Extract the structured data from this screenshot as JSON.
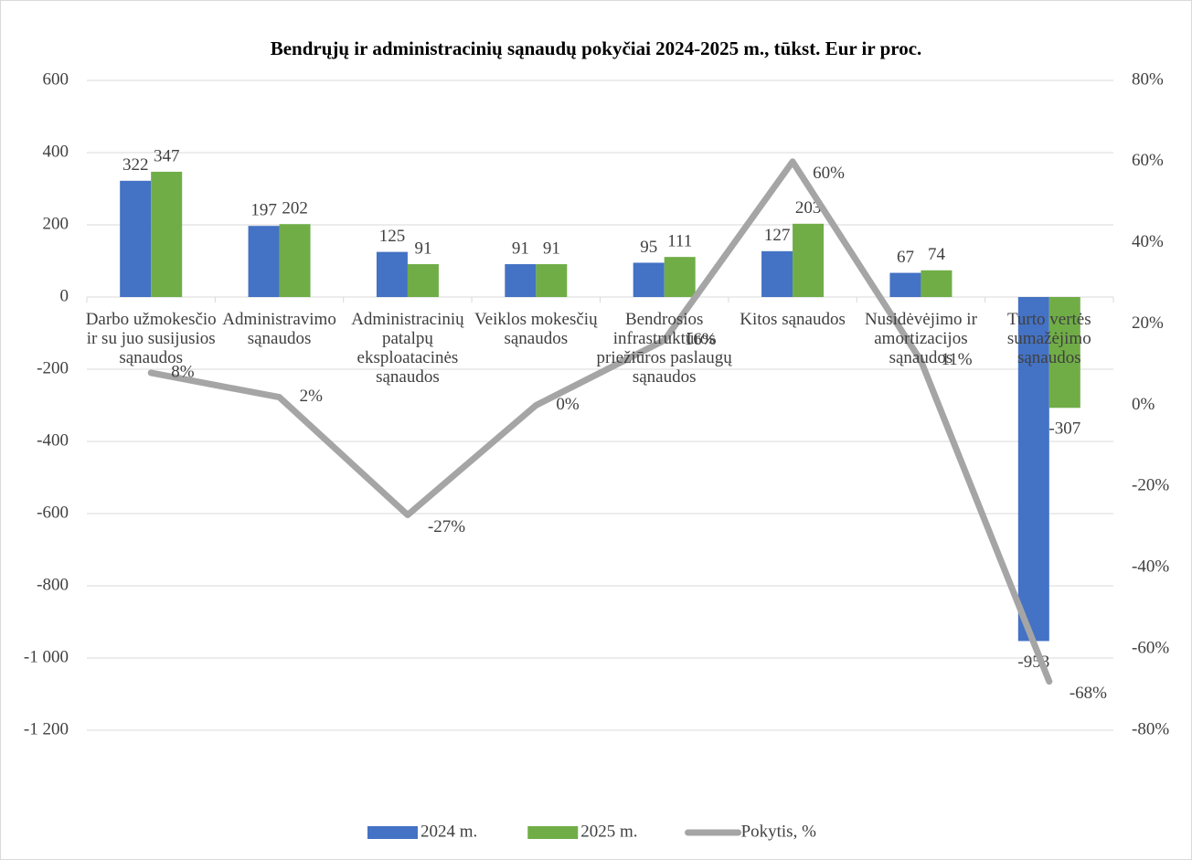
{
  "chart_data": {
    "type": "bar",
    "title": "Bendrųjų ir administracinių sąnaudų pokyčiai 2024-2025 m., tūkst. Eur ir proc.",
    "categories": [
      "Darbo užmokesčio ir su juo susijusios sąnaudos",
      "Administravimo sąnaudos",
      "Administracinių patalpų eksploatacinės sąnaudos",
      "Veiklos mokesčių sąnaudos",
      "Bendrosios infrastruktūros priežiūros paslaugų sąnaudos",
      "Kitos sąnaudos",
      "Nusidėvėjimo ir amortizacijos sąnaudos",
      "Turto vertės sumažėjimo sąnaudos"
    ],
    "series": [
      {
        "name": "2024 m.",
        "color": "#4472c4",
        "values": [
          322,
          197,
          125,
          91,
          95,
          127,
          67,
          -953
        ]
      },
      {
        "name": "2025 m.",
        "color": "#70ad47",
        "values": [
          347,
          202,
          91,
          91,
          111,
          203,
          74,
          -307
        ]
      },
      {
        "name": "Pokytis, %",
        "type": "line",
        "axis": "y2",
        "color": "#a5a5a5",
        "values": [
          8,
          2,
          -27,
          0,
          16,
          60,
          11,
          -68
        ],
        "value_labels": [
          "8%",
          "2%",
          "-27%",
          "0%",
          "16%",
          "60%",
          "11%",
          "-68%"
        ]
      }
    ],
    "ylim": [
      -1200,
      600
    ],
    "yticks": [
      600,
      400,
      200,
      0,
      -200,
      -400,
      -600,
      -800,
      {
        "value": -1000,
        "label": "-1 000"
      },
      {
        "value": -1200,
        "label": "-1 200"
      }
    ],
    "y2lim": [
      -80,
      80
    ],
    "y2ticks": [
      {
        "value": 80,
        "label": "80%"
      },
      {
        "value": 60,
        "label": "60%"
      },
      {
        "value": 40,
        "label": "40%"
      },
      {
        "value": 20,
        "label": "20%"
      },
      {
        "value": 0,
        "label": "0%"
      },
      {
        "value": -20,
        "label": "-20%"
      },
      {
        "value": -40,
        "label": "-40%"
      },
      {
        "value": -60,
        "label": "-60%"
      },
      {
        "value": -80,
        "label": "-80%"
      }
    ],
    "grid": true,
    "legend": "bottom"
  }
}
